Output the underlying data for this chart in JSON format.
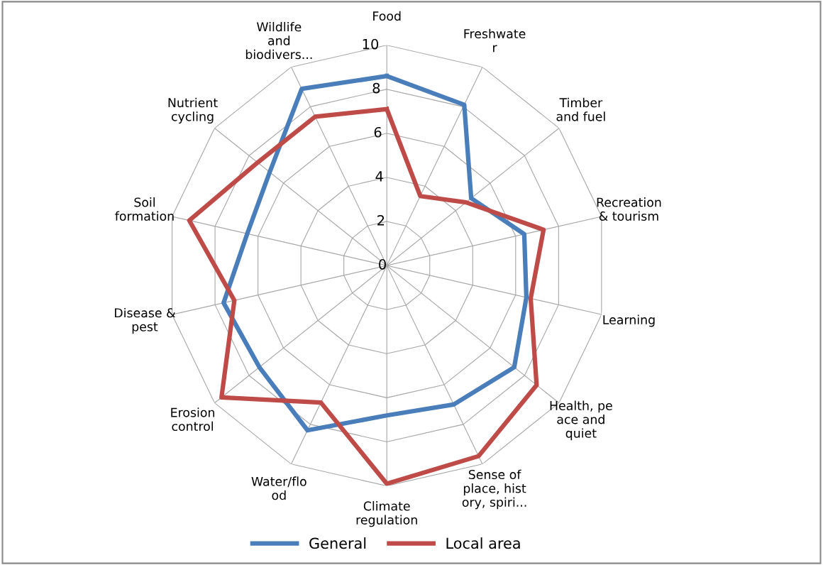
{
  "chart_data": {
    "type": "radar",
    "categories": [
      "Food",
      "Freshwate\nr",
      "Timber\nand fuel",
      "Recreation\n& tourism",
      "Learning",
      "Health, pe\nace and\nquiet",
      "Sense of\nplace, hist\nory, spiri...",
      "Climate\nregulation",
      "Water/flo\nod",
      "Erosion\ncontrol",
      "Disease &\npest",
      "Soil\nformation",
      "Nutrient\ncycling",
      "Wildlife\nand\nbiodivers..."
    ],
    "series": [
      {
        "name": "General",
        "color": "#4a7ebb",
        "values": [
          8.6,
          8.1,
          4.9,
          6.4,
          6.5,
          7.4,
          7.0,
          6.8,
          8.3,
          7.4,
          7.6,
          6.5,
          6.8,
          8.9
        ]
      },
      {
        "name": "Local area",
        "color": "#be4b48",
        "values": [
          7.1,
          3.5,
          4.6,
          7.3,
          6.7,
          8.7,
          9.6,
          9.9,
          6.9,
          9.6,
          7.1,
          9.2,
          7.5,
          7.5
        ]
      }
    ],
    "ylim": [
      0,
      10
    ],
    "yticks": [
      0,
      2,
      4,
      6,
      8,
      10
    ],
    "grid": true,
    "legend": "bottom",
    "marker": "none",
    "line_style": "solid"
  }
}
